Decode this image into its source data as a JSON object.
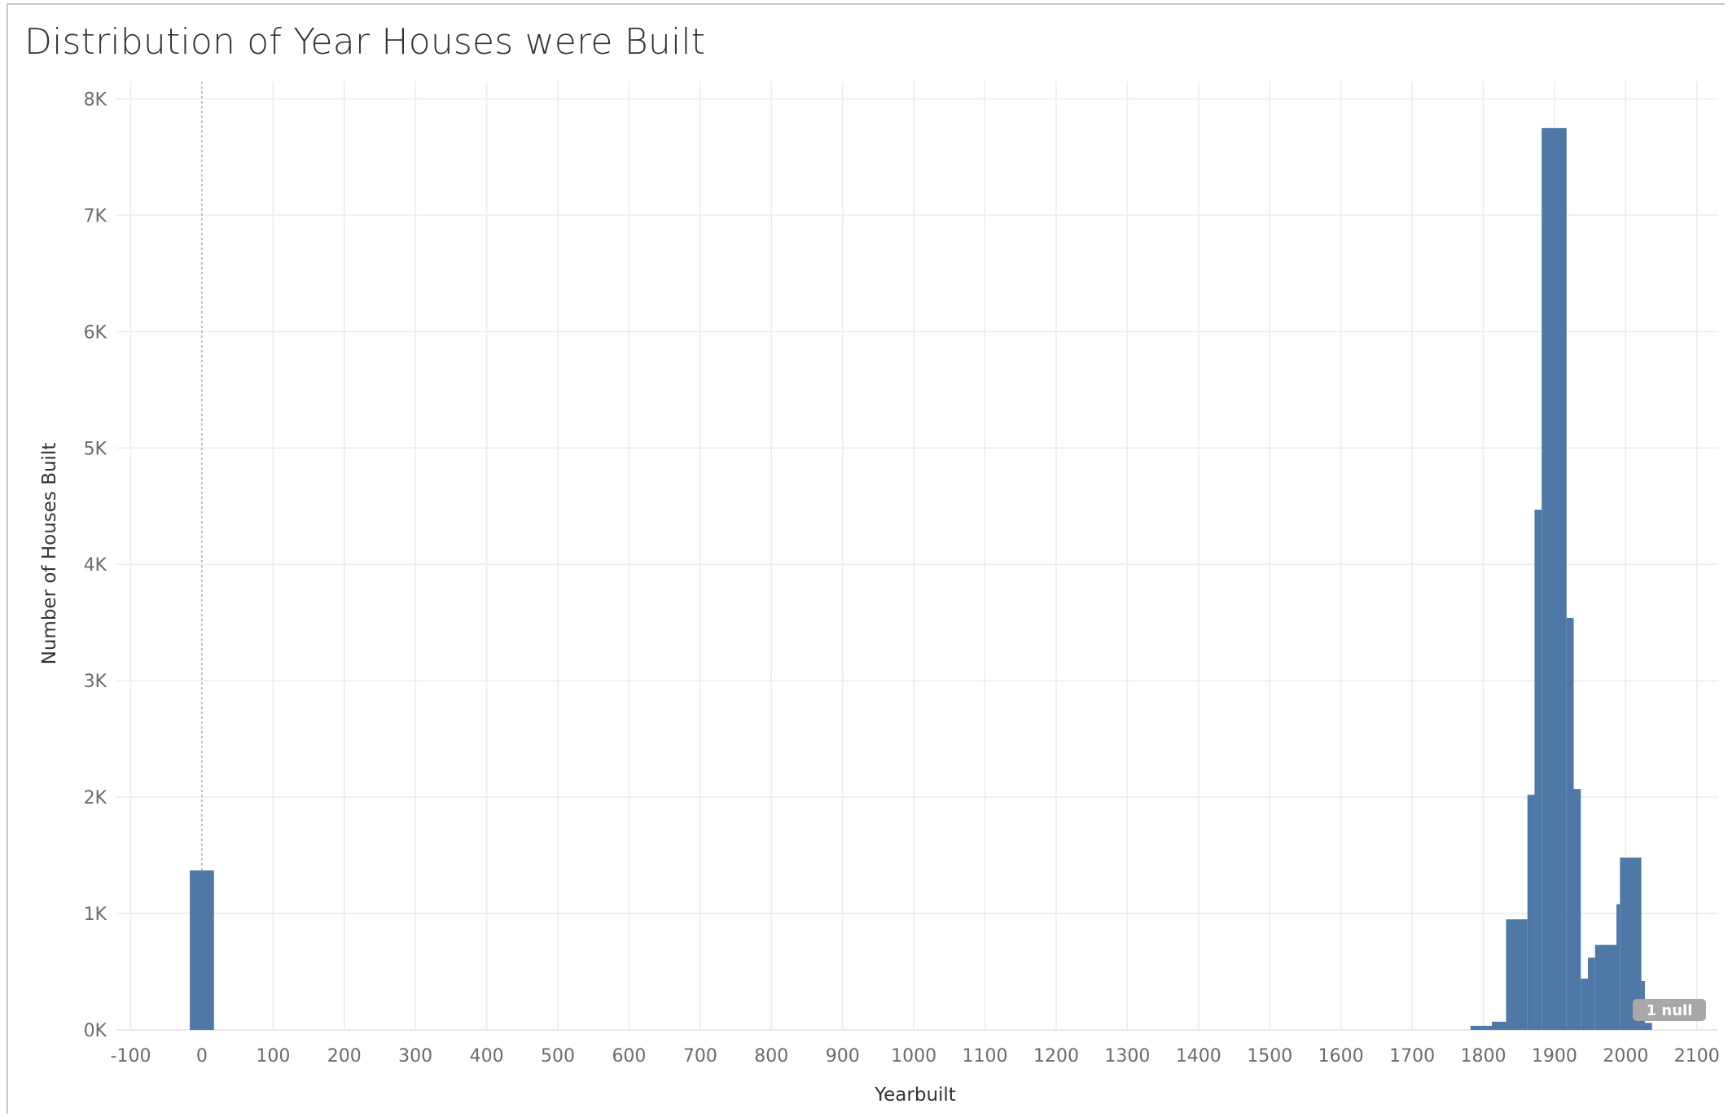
{
  "chart_data": {
    "type": "bar",
    "title": "Distribution of Year Houses were Built",
    "xlabel": "Yearbuilt",
    "ylabel": "Number of Houses Built",
    "xlim": [
      -120,
      2130
    ],
    "ylim": [
      0,
      8150
    ],
    "x_ticks": [
      -100,
      0,
      100,
      200,
      300,
      400,
      500,
      600,
      700,
      800,
      900,
      1000,
      1100,
      1200,
      1300,
      1400,
      1500,
      1600,
      1700,
      1800,
      1900,
      2000,
      2100
    ],
    "x_tick_labels": [
      "-100",
      "0",
      "100",
      "200",
      "300",
      "400",
      "500",
      "600",
      "700",
      "800",
      "900",
      "1000",
      "1100",
      "1200",
      "1300",
      "1400",
      "1500",
      "1600",
      "1700",
      "1800",
      "1900",
      "2000",
      "2100"
    ],
    "y_ticks": [
      0,
      1000,
      2000,
      3000,
      4000,
      5000,
      6000,
      7000,
      8000
    ],
    "y_tick_labels": [
      "0K",
      "1K",
      "2K",
      "3K",
      "4K",
      "5K",
      "6K",
      "7K",
      "8K"
    ],
    "grid": true,
    "bar_color": "#4e79a7",
    "reference_line_x": 0,
    "null_indicator": "1 null",
    "bars": [
      {
        "x0": -17,
        "x1": 17,
        "value": 1370
      },
      {
        "x0": 1782,
        "x1": 1812,
        "value": 35
      },
      {
        "x0": 1812,
        "x1": 1832,
        "value": 70
      },
      {
        "x0": 1832,
        "x1": 1862,
        "value": 950
      },
      {
        "x0": 1862,
        "x1": 1872,
        "value": 2020
      },
      {
        "x0": 1872,
        "x1": 1882,
        "value": 4470
      },
      {
        "x0": 1882,
        "x1": 1917,
        "value": 7750
      },
      {
        "x0": 1917,
        "x1": 1927,
        "value": 3540
      },
      {
        "x0": 1927,
        "x1": 1937,
        "value": 2070
      },
      {
        "x0": 1937,
        "x1": 1947,
        "value": 440
      },
      {
        "x0": 1947,
        "x1": 1957,
        "value": 620
      },
      {
        "x0": 1957,
        "x1": 1987,
        "value": 730
      },
      {
        "x0": 1987,
        "x1": 1992,
        "value": 1080
      },
      {
        "x0": 1992,
        "x1": 2022,
        "value": 1480
      },
      {
        "x0": 2022,
        "x1": 2027,
        "value": 420
      },
      {
        "x0": 2027,
        "x1": 2037,
        "value": 60
      }
    ]
  }
}
